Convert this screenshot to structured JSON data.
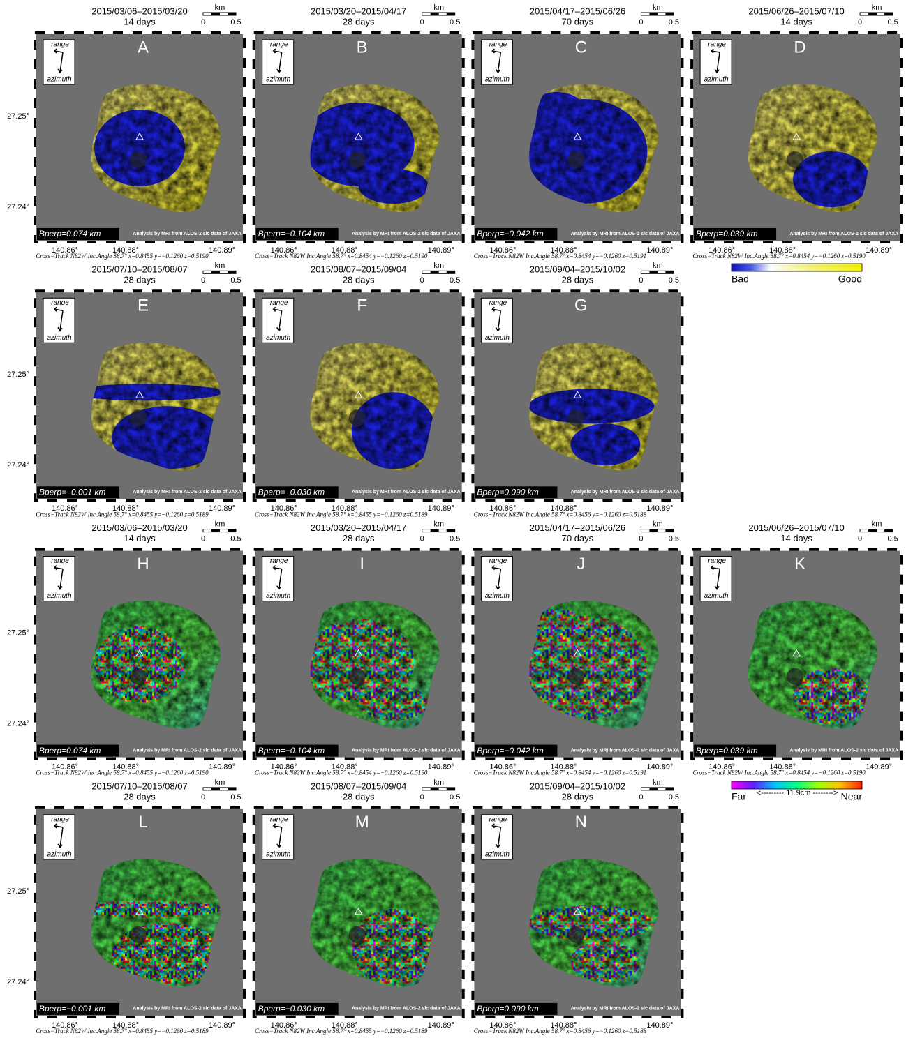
{
  "common": {
    "scale_unit": "km",
    "scale_zero": "0",
    "scale_end": "0.5",
    "range": "range",
    "azimuth": "azimuth",
    "credit": "Analysis by MRI from ALOS-2 slc data of JAXA",
    "lat_ticks": [
      "27.25°",
      "27.24°"
    ],
    "lon_ticks": [
      "140.86°",
      "140.88°",
      "140.89°"
    ]
  },
  "coherence_panels": {
    "colorbar": {
      "low": "Bad",
      "high": "Good"
    },
    "panels": [
      {
        "label": "A",
        "period": "2015/03/06–2015/03/20",
        "days": "14 days",
        "bperp": "Bperp=0.074 km",
        "geometry": "Cross−Track N82W  Inc.Angle 58.7°  x=0.8455  y=−0.1260  z=0.5190"
      },
      {
        "label": "B",
        "period": "2015/03/20–2015/04/17",
        "days": "28 days",
        "bperp": "Bperp=−0.104 km",
        "geometry": "Cross−Track N82W  Inc.Angle 58.7°  x=0.8454  y=−0.1260  z=0.5190"
      },
      {
        "label": "C",
        "period": "2015/04/17–2015/06/26",
        "days": "70 days",
        "bperp": "Bperp=−0.042 km",
        "geometry": "Cross−Track N82W  Inc.Angle 58.7°  x=0.8454  y=−0.1260  z=0.5191"
      },
      {
        "label": "D",
        "period": "2015/06/26–2015/07/10",
        "days": "14 days",
        "bperp": "Bperp=0.039 km",
        "geometry": "Cross−Track N82W  Inc.Angle 58.7°  x=0.8454  y=−0.1260  z=0.5190"
      },
      {
        "label": "E",
        "period": "2015/07/10–2015/08/07",
        "days": "28 days",
        "bperp": "Bperp=−0.001 km",
        "geometry": "Cross−Track N82W  Inc.Angle 58.7°  x=0.8455  y=−0.1260  z=0.5189"
      },
      {
        "label": "F",
        "period": "2015/08/07–2015/09/04",
        "days": "28 days",
        "bperp": "Bperp=−0.030 km",
        "geometry": "Cross−Track N82W  Inc.Angle 58.7°  x=0.8455  y=−0.1260  z=0.5189"
      },
      {
        "label": "G",
        "period": "2015/09/04–2015/10/02",
        "days": "28 days",
        "bperp": "Bperp=0.090 km",
        "geometry": "Cross−Track N82W  Inc.Angle 58.7°  x=0.8456  y=−0.1260  z=0.5188"
      }
    ]
  },
  "phase_panels": {
    "colorbar": {
      "low": "Far",
      "middle": "<--------- 11.9cm -------->",
      "high": "Near"
    },
    "panels": [
      {
        "label": "H",
        "period": "2015/03/06–2015/03/20",
        "days": "14 days",
        "bperp": "Bperp=0.074 km",
        "geometry": "Cross−Track N82W  Inc.Angle 58.7°  x=0.8455  y=−0.1260  z=0.5190"
      },
      {
        "label": "I",
        "period": "2015/03/20–2015/04/17",
        "days": "28 days",
        "bperp": "Bperp=−0.104 km",
        "geometry": "Cross−Track N82W  Inc.Angle 58.7°  x=0.8454  y=−0.1260  z=0.5190"
      },
      {
        "label": "J",
        "period": "2015/04/17–2015/06/26",
        "days": "70 days",
        "bperp": "Bperp=−0.042 km",
        "geometry": "Cross−Track N82W  Inc.Angle 58.7°  x=0.8454  y=−0.1260  z=0.5191"
      },
      {
        "label": "K",
        "period": "2015/06/26–2015/07/10",
        "days": "14 days",
        "bperp": "Bperp=0.039 km",
        "geometry": "Cross−Track N82W  Inc.Angle 58.7°  x=0.8454  y=−0.1260  z=0.5190"
      },
      {
        "label": "L",
        "period": "2015/07/10–2015/08/07",
        "days": "28 days",
        "bperp": "Bperp=−0.001 km",
        "geometry": "Cross−Track N82W  Inc.Angle 58.7°  x=0.8455  y=−0.1260  z=0.5189"
      },
      {
        "label": "M",
        "period": "2015/08/07–2015/09/04",
        "days": "28 days",
        "bperp": "Bperp=−0.030 km",
        "geometry": "Cross−Track N82W  Inc.Angle 58.7°  x=0.8455  y=−0.1260  z=0.5189"
      },
      {
        "label": "N",
        "period": "2015/09/04–2015/10/02",
        "days": "28 days",
        "bperp": "Bperp=0.090 km",
        "geometry": "Cross−Track N82W  Inc.Angle 58.7°  x=0.8456  y=−0.1260  z=0.5188"
      }
    ]
  }
}
